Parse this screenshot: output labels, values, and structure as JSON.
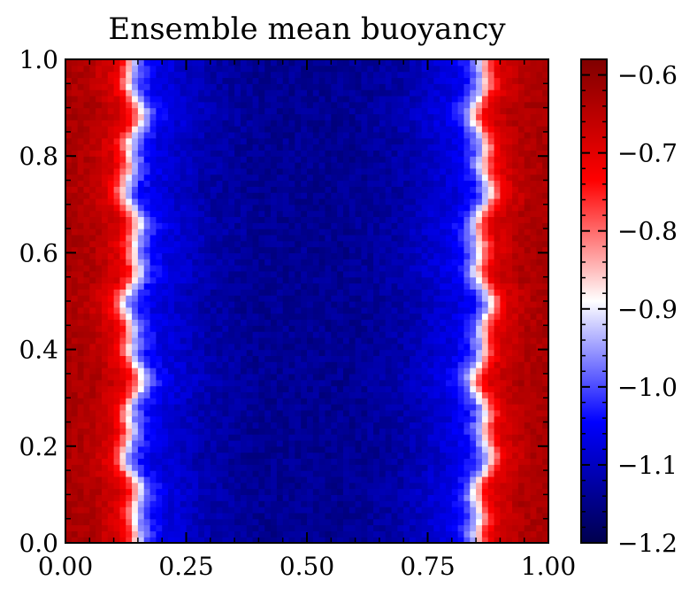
{
  "chart_data": {
    "type": "heatmap",
    "title": "Ensemble mean buoyancy",
    "xlabel": "",
    "ylabel": "",
    "xlim": [
      0.0,
      1.0
    ],
    "ylim": [
      0.0,
      1.0
    ],
    "x_ticks": [
      0.0,
      0.25,
      0.5,
      0.75,
      1.0
    ],
    "x_tick_labels": [
      "0.00",
      "0.25",
      "0.50",
      "0.75",
      "1.00"
    ],
    "y_ticks": [
      0.0,
      0.2,
      0.4,
      0.6,
      0.8,
      1.0
    ],
    "y_tick_labels": [
      "0.0",
      "0.2",
      "0.4",
      "0.6",
      "0.8",
      "1.0"
    ],
    "colormap": "seismic",
    "colorbar": {
      "range": [
        -1.2,
        -0.58
      ],
      "ticks": [
        -1.2,
        -1.1,
        -1.0,
        -0.9,
        -0.8,
        -0.7,
        -0.6
      ],
      "tick_labels": [
        "−1.2",
        "−1.1",
        "−1.0",
        "−0.9",
        "−0.8",
        "−0.7",
        "−0.6"
      ]
    },
    "x_profile": {
      "x": [
        0.0,
        0.05,
        0.1,
        0.12,
        0.135,
        0.15,
        0.17,
        0.2,
        0.3,
        0.4,
        0.5,
        0.6,
        0.7,
        0.8,
        0.83,
        0.85,
        0.865,
        0.88,
        0.9,
        0.95,
        1.0
      ],
      "value": [
        -0.63,
        -0.64,
        -0.69,
        -0.76,
        -0.86,
        -0.96,
        -1.03,
        -1.07,
        -1.12,
        -1.14,
        -1.14,
        -1.14,
        -1.12,
        -1.07,
        -1.03,
        -0.96,
        -0.86,
        -0.76,
        -0.69,
        -0.64,
        -0.63
      ]
    },
    "boundary_x": {
      "left": 0.14,
      "right": 0.86
    }
  }
}
